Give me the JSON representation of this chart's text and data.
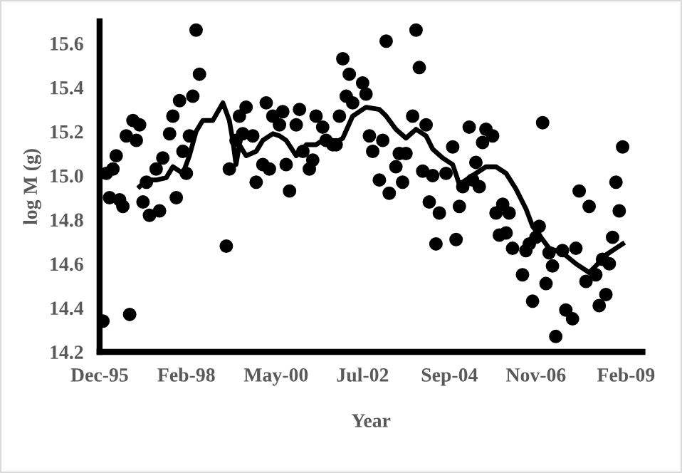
{
  "chart_data": {
    "type": "scatter",
    "xlabel": "Year",
    "ylabel": "log M (g)",
    "xlim": [
      "1995-12-01",
      "2009-07-01"
    ],
    "ylim": [
      14.2,
      15.7
    ],
    "xticks": [
      {
        "value": "1995-12-01",
        "label": "Dec-95"
      },
      {
        "value": "1998-02-01",
        "label": "Feb-98"
      },
      {
        "value": "2000-05-01",
        "label": "May-00"
      },
      {
        "value": "2002-07-01",
        "label": "Jul-02"
      },
      {
        "value": "2004-09-01",
        "label": "Sep-04"
      },
      {
        "value": "2006-11-01",
        "label": "Nov-06"
      },
      {
        "value": "2009-02-01",
        "label": "Feb-09"
      }
    ],
    "yticks": [
      14.2,
      14.4,
      14.6,
      14.8,
      {
        "value": 15.0,
        "label": "15.0"
      },
      15.2,
      15.4,
      15.6
    ],
    "grid": false,
    "marker": "circle",
    "series": [
      {
        "color": "#000000",
        "x": [
          "1996-01",
          "1996-02",
          "1996-03",
          "1996-04",
          "1996-05",
          "1996-06",
          "1996-07",
          "1996-08",
          "1996-09",
          "1996-10",
          "1996-11",
          "1996-12",
          "1997-01",
          "1997-02",
          "1997-03",
          "1997-05",
          "1997-06",
          "1997-07",
          "1997-09",
          "1997-10",
          "1997-11",
          "1997-12",
          "1998-01",
          "1998-02",
          "1998-03",
          "1998-04",
          "1998-05",
          "1998-06",
          "1999-02",
          "1999-03",
          "1999-05",
          "1999-06",
          "1999-07",
          "1999-08",
          "1999-10",
          "1999-11",
          "2000-01",
          "2000-02",
          "2000-03",
          "2000-04",
          "2000-06",
          "2000-07",
          "2000-08",
          "2000-09",
          "2000-11",
          "2000-12",
          "2001-01",
          "2001-03",
          "2001-04",
          "2001-05",
          "2001-07",
          "2001-08",
          "2001-10",
          "2001-11",
          "2001-12",
          "2002-01",
          "2002-02",
          "2002-03",
          "2002-04",
          "2002-07",
          "2002-08",
          "2002-09",
          "2002-10",
          "2002-12",
          "2003-01",
          "2003-02",
          "2003-03",
          "2003-05",
          "2003-06",
          "2003-07",
          "2003-08",
          "2003-10",
          "2003-11",
          "2003-12",
          "2004-01",
          "2004-02",
          "2004-03",
          "2004-04",
          "2004-05",
          "2004-06",
          "2004-08",
          "2004-10",
          "2004-11",
          "2004-12",
          "2005-01",
          "2005-03",
          "2005-04",
          "2005-05",
          "2005-06",
          "2005-07",
          "2005-08",
          "2005-10",
          "2005-11",
          "2005-12",
          "2006-01",
          "2006-02",
          "2006-03",
          "2006-04",
          "2006-07",
          "2006-08",
          "2006-09",
          "2006-10",
          "2006-11",
          "2006-12",
          "2007-01",
          "2007-02",
          "2007-03",
          "2007-04",
          "2007-05",
          "2007-07",
          "2007-08",
          "2007-10",
          "2007-11",
          "2007-12",
          "2008-02",
          "2008-03",
          "2008-05",
          "2008-06",
          "2008-07",
          "2008-08",
          "2008-09",
          "2008-10",
          "2008-11",
          "2008-12",
          "2009-01"
        ],
        "values": [
          14.34,
          15.01,
          14.9,
          15.03,
          15.09,
          14.89,
          14.86,
          15.18,
          14.37,
          15.25,
          15.16,
          15.23,
          14.88,
          14.97,
          14.82,
          15.03,
          14.84,
          15.08,
          15.19,
          15.27,
          14.9,
          15.34,
          15.11,
          15.01,
          15.18,
          15.36,
          15.66,
          15.46,
          14.68,
          15.03,
          15.16,
          15.27,
          15.19,
          15.31,
          15.18,
          14.97,
          15.05,
          15.33,
          15.03,
          15.27,
          15.23,
          15.29,
          15.05,
          14.93,
          15.23,
          15.3,
          15.11,
          15.03,
          15.07,
          15.27,
          15.22,
          15.16,
          15.14,
          15.14,
          15.27,
          15.53,
          15.36,
          15.46,
          15.33,
          15.42,
          15.37,
          15.18,
          15.11,
          14.98,
          15.16,
          15.61,
          14.92,
          15.04,
          15.1,
          14.97,
          15.1,
          15.27,
          15.66,
          15.49,
          15.02,
          15.23,
          14.88,
          15.0,
          14.69,
          14.83,
          15.01,
          15.13,
          14.71,
          14.86,
          14.95,
          15.22,
          14.98,
          15.06,
          14.95,
          15.15,
          15.21,
          15.18,
          14.83,
          14.73,
          14.87,
          14.74,
          14.83,
          14.67,
          14.55,
          14.66,
          14.69,
          14.43,
          14.72,
          14.77,
          15.24,
          14.51,
          14.65,
          14.59,
          14.27,
          14.66,
          14.39,
          14.35,
          14.67,
          14.93,
          14.52,
          14.86,
          14.55,
          14.41,
          14.62,
          14.46,
          14.6,
          14.72,
          14.97,
          14.84,
          15.13
        ]
      },
      {
        "type": "line",
        "color": "#000000",
        "marker": "none",
        "line_style": "solid",
        "x": [
          "1996-12",
          "1997-02",
          "1997-05",
          "1997-08",
          "1997-10",
          "1998-01",
          "1998-03",
          "1998-05",
          "1998-07",
          "1998-10",
          "1999-01",
          "1999-03",
          "1999-04",
          "1999-05",
          "1999-06",
          "1999-08",
          "1999-11",
          "2000-01",
          "2000-04",
          "2000-06",
          "2000-08",
          "2000-11",
          "2001-02",
          "2001-05",
          "2001-08",
          "2001-10",
          "2002-01",
          "2002-04",
          "2002-08",
          "2002-12",
          "2003-02",
          "2003-05",
          "2003-08",
          "2003-11",
          "2004-02",
          "2004-04",
          "2004-07",
          "2004-10",
          "2004-12",
          "2005-03",
          "2005-05",
          "2005-08",
          "2005-11",
          "2006-02",
          "2006-05",
          "2006-08",
          "2006-10",
          "2006-12",
          "2007-03",
          "2007-07",
          "2007-11",
          "2008-03",
          "2008-05",
          "2008-08",
          "2008-11",
          "2009-01"
        ],
        "values": [
          14.95,
          14.98,
          14.98,
          14.99,
          15.04,
          15.01,
          15.09,
          15.2,
          15.25,
          15.25,
          15.33,
          15.25,
          15.16,
          15.05,
          15.14,
          15.09,
          15.11,
          15.16,
          15.19,
          15.18,
          15.16,
          15.09,
          15.14,
          15.14,
          15.17,
          15.14,
          15.17,
          15.27,
          15.31,
          15.3,
          15.27,
          15.21,
          15.17,
          15.21,
          15.18,
          15.12,
          15.08,
          15.05,
          14.96,
          14.99,
          15.01,
          15.04,
          15.04,
          15.01,
          14.94,
          14.85,
          14.77,
          14.73,
          14.67,
          14.65,
          14.6,
          14.56,
          14.59,
          14.64,
          14.67,
          14.69
        ]
      }
    ]
  }
}
